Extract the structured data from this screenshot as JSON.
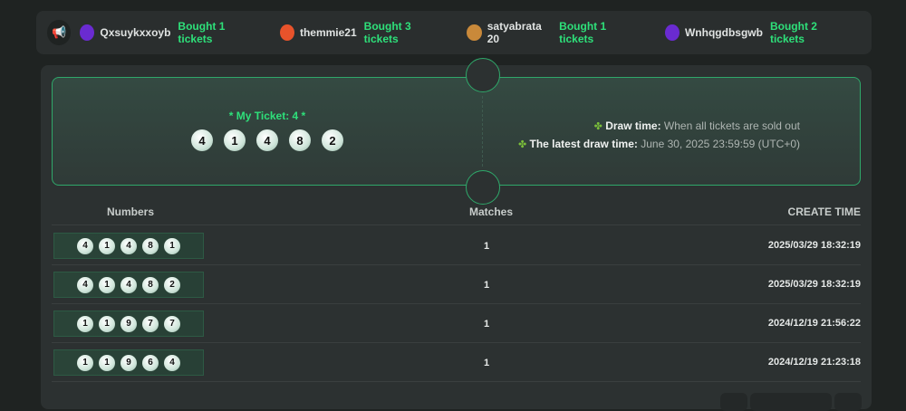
{
  "ticker": {
    "icon": "megaphone-icon",
    "items": [
      {
        "user": "Qxsuykxxoyb",
        "action": "Bought 1 tickets",
        "avatar_color": "#6a2bd1"
      },
      {
        "user": "themmie21",
        "action": "Bought 3 tickets",
        "avatar_color": "#e8532b"
      },
      {
        "user": "satyabrata 20",
        "action": "Bought 1 tickets",
        "avatar_color": "#c9893a"
      },
      {
        "user": "Wnhqgdbsgwb",
        "action": "Bought 2 tickets",
        "avatar_color": "#6a2bd1"
      }
    ]
  },
  "ticket": {
    "label": "* My Ticket: 4 *",
    "numbers": [
      "4",
      "1",
      "4",
      "8",
      "2"
    ],
    "draw_time_label": "Draw time:",
    "draw_time_value": "When all tickets are sold out",
    "latest_label": "The latest draw time:",
    "latest_value": "June 30, 2025 23:59:59 (UTC+0)"
  },
  "table": {
    "headers": [
      "Numbers",
      "Matches",
      "CREATE TIME"
    ],
    "rows": [
      {
        "numbers": [
          "4",
          "1",
          "4",
          "8",
          "1"
        ],
        "matches": "1",
        "time": "2025/03/29 18:32:19"
      },
      {
        "numbers": [
          "4",
          "1",
          "4",
          "8",
          "2"
        ],
        "matches": "1",
        "time": "2025/03/29 18:32:19"
      },
      {
        "numbers": [
          "1",
          "1",
          "9",
          "7",
          "7"
        ],
        "matches": "1",
        "time": "2024/12/19 21:56:22"
      },
      {
        "numbers": [
          "1",
          "1",
          "9",
          "6",
          "4"
        ],
        "matches": "1",
        "time": "2024/12/19 21:23:18"
      }
    ]
  },
  "colors": {
    "accent": "#2ee07a",
    "border": "#2fa86a"
  }
}
